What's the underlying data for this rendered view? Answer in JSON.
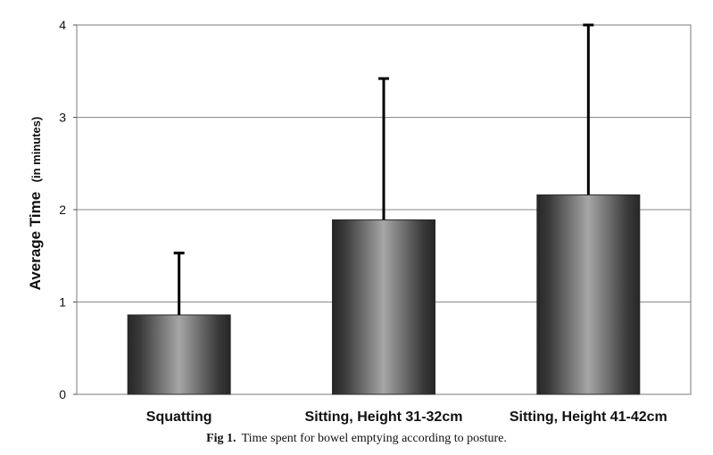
{
  "chart_data": {
    "type": "bar",
    "categories": [
      "Squatting",
      "Sitting, Height 31-32cm",
      "Sitting, Height 41-42cm"
    ],
    "values": [
      0.86,
      1.89,
      2.16
    ],
    "error_upper": [
      1.53,
      3.42,
      4.0
    ],
    "ylabel": "Average Time",
    "ylabel_unit": "(in minutes)",
    "xlabel": "",
    "ylim": [
      0,
      4
    ],
    "yticks": [
      0,
      1,
      2,
      3,
      4
    ],
    "grid": true,
    "colors": {
      "bar_edge": "#2a2a2a",
      "bar_center": "#9a9a9a",
      "gridline": "#8a8a8a",
      "error_bar": "#000000"
    }
  },
  "caption": {
    "label": "Fig 1.",
    "text": "Time spent for bowel emptying according to posture."
  }
}
